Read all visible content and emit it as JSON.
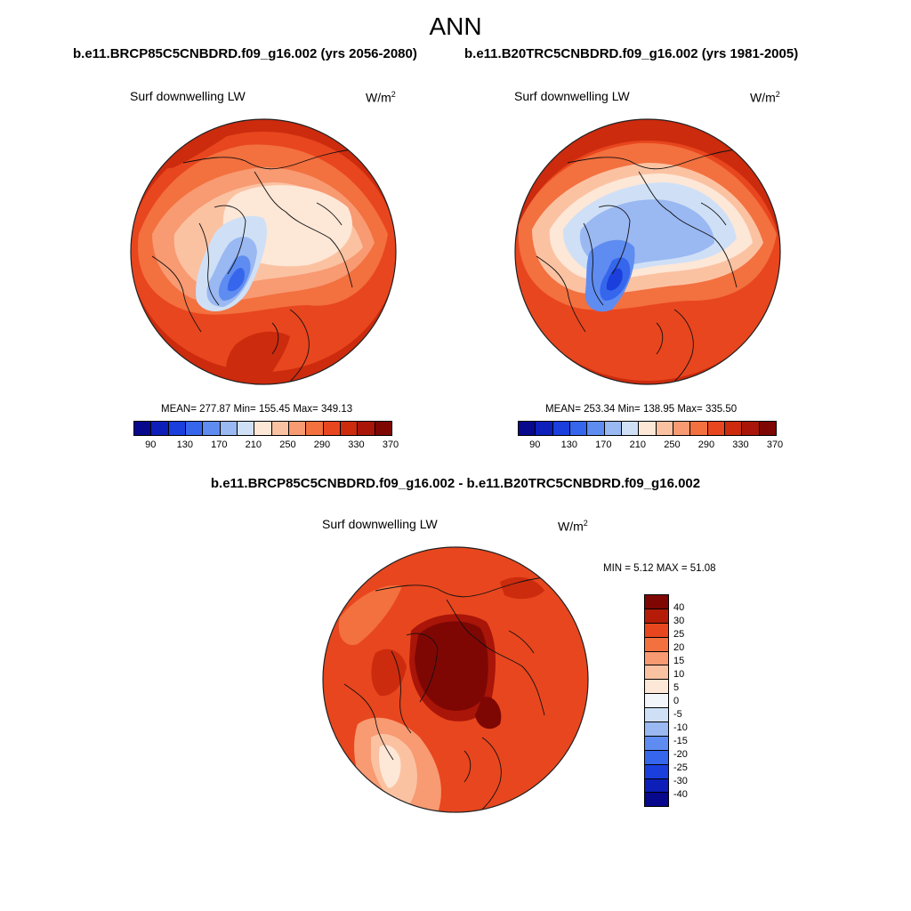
{
  "figure": {
    "title": "ANN",
    "left_case_title": "b.e11.BRCP85C5CNBDRD.f09_g16.002 (yrs 2056-2080)",
    "right_case_title": "b.e11.B20TRC5CNBDRD.f09_g16.002 (yrs 1981-2005)",
    "diff_title": "b.e11.BRCP85C5CNBDRD.f09_g16.002 - b.e11.B20TRC5CNBDRD.f09_g16.002"
  },
  "panels": {
    "left": {
      "variable": "Surf downwelling LW",
      "unit_base": "W/m",
      "unit_exp": "2",
      "stats": "MEAN= 277.87  Min= 155.45  Max= 349.13"
    },
    "right": {
      "variable": "Surf downwelling LW",
      "unit_base": "W/m",
      "unit_exp": "2",
      "stats": "MEAN= 253.34  Min= 138.95  Max= 335.50"
    },
    "diff": {
      "variable": "Surf downwelling LW",
      "unit_base": "W/m",
      "unit_exp": "2",
      "stats": "MIN =   5.12 MAX =  51.08"
    }
  },
  "colorbars": {
    "abs": {
      "ticks": [
        "90",
        "130",
        "170",
        "210",
        "250",
        "290",
        "330",
        "370"
      ],
      "colors": [
        "#08088c",
        "#0d1fb8",
        "#1a3fdc",
        "#3566ec",
        "#5f8cf0",
        "#9ab8f2",
        "#cfe0f6",
        "#fde7d7",
        "#fbc2a2",
        "#f89a72",
        "#f3703f",
        "#e8461e",
        "#cc2b0e",
        "#a91508",
        "#7e0704"
      ]
    },
    "diff": {
      "ticks": [
        "40",
        "30",
        "25",
        "20",
        "15",
        "10",
        "5",
        "0",
        "-5",
        "-10",
        "-15",
        "-20",
        "-25",
        "-30",
        "-40"
      ],
      "colors": [
        "#7e0704",
        "#b41c08",
        "#e8461e",
        "#f3703f",
        "#f89a72",
        "#fbc2a2",
        "#fde7d7",
        "#f2f6fb",
        "#cfe0f6",
        "#9ab8f2",
        "#5f8cf0",
        "#3566ec",
        "#1a3fdc",
        "#0d1fb8",
        "#08088c"
      ]
    }
  }
}
